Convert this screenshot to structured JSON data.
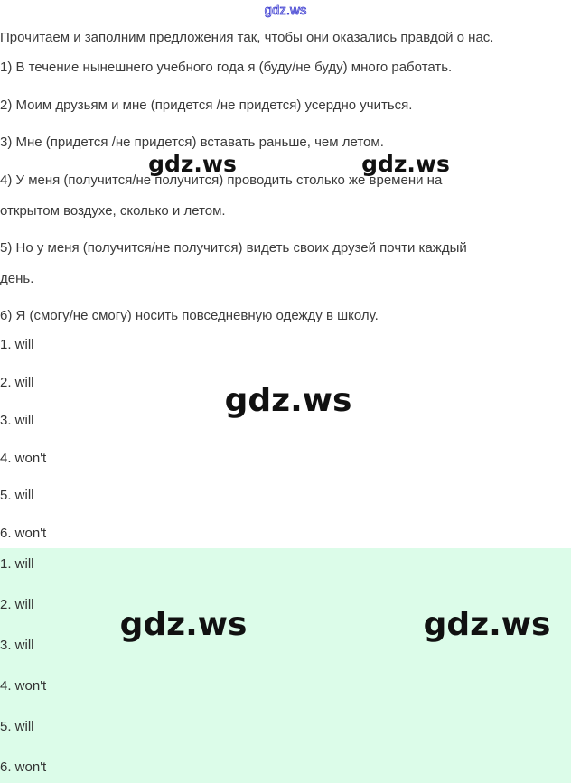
{
  "top_watermark": "gdz.ws",
  "intro": "Прочитаем и заполним предложения так, чтобы они оказались правдой о нас.",
  "sentences": [
    "1) В течение нынешнего учебного года я (буду/не буду) много работать.",
    "2) Моим друзьям и мне (придется /не придется) усердно учиться.",
    "3) Мне (придется /не придется) вставать раньше, чем летом.",
    "4) У меня (получится/не получится) проводить столько же времени на",
    "открытом воздухе, сколько и летом.",
    "5) Но у меня (получится/не получится) видеть своих друзей почти каждый",
    "день.",
    "6) Я (смогу/не смогу) носить повседневную одежду в школу."
  ],
  "answers": [
    "1. will",
    "2. will",
    "3. will",
    "4. won't",
    "5. will",
    "6. won't"
  ],
  "answers_highlighted": [
    "1. will",
    "2. will",
    "3. will",
    "4. won't",
    "5. will",
    "6. won't"
  ],
  "watermark": "gdz.ws",
  "colors": {
    "highlight_bg": "#dcfce9",
    "top_watermark": "#3a3ad0"
  }
}
